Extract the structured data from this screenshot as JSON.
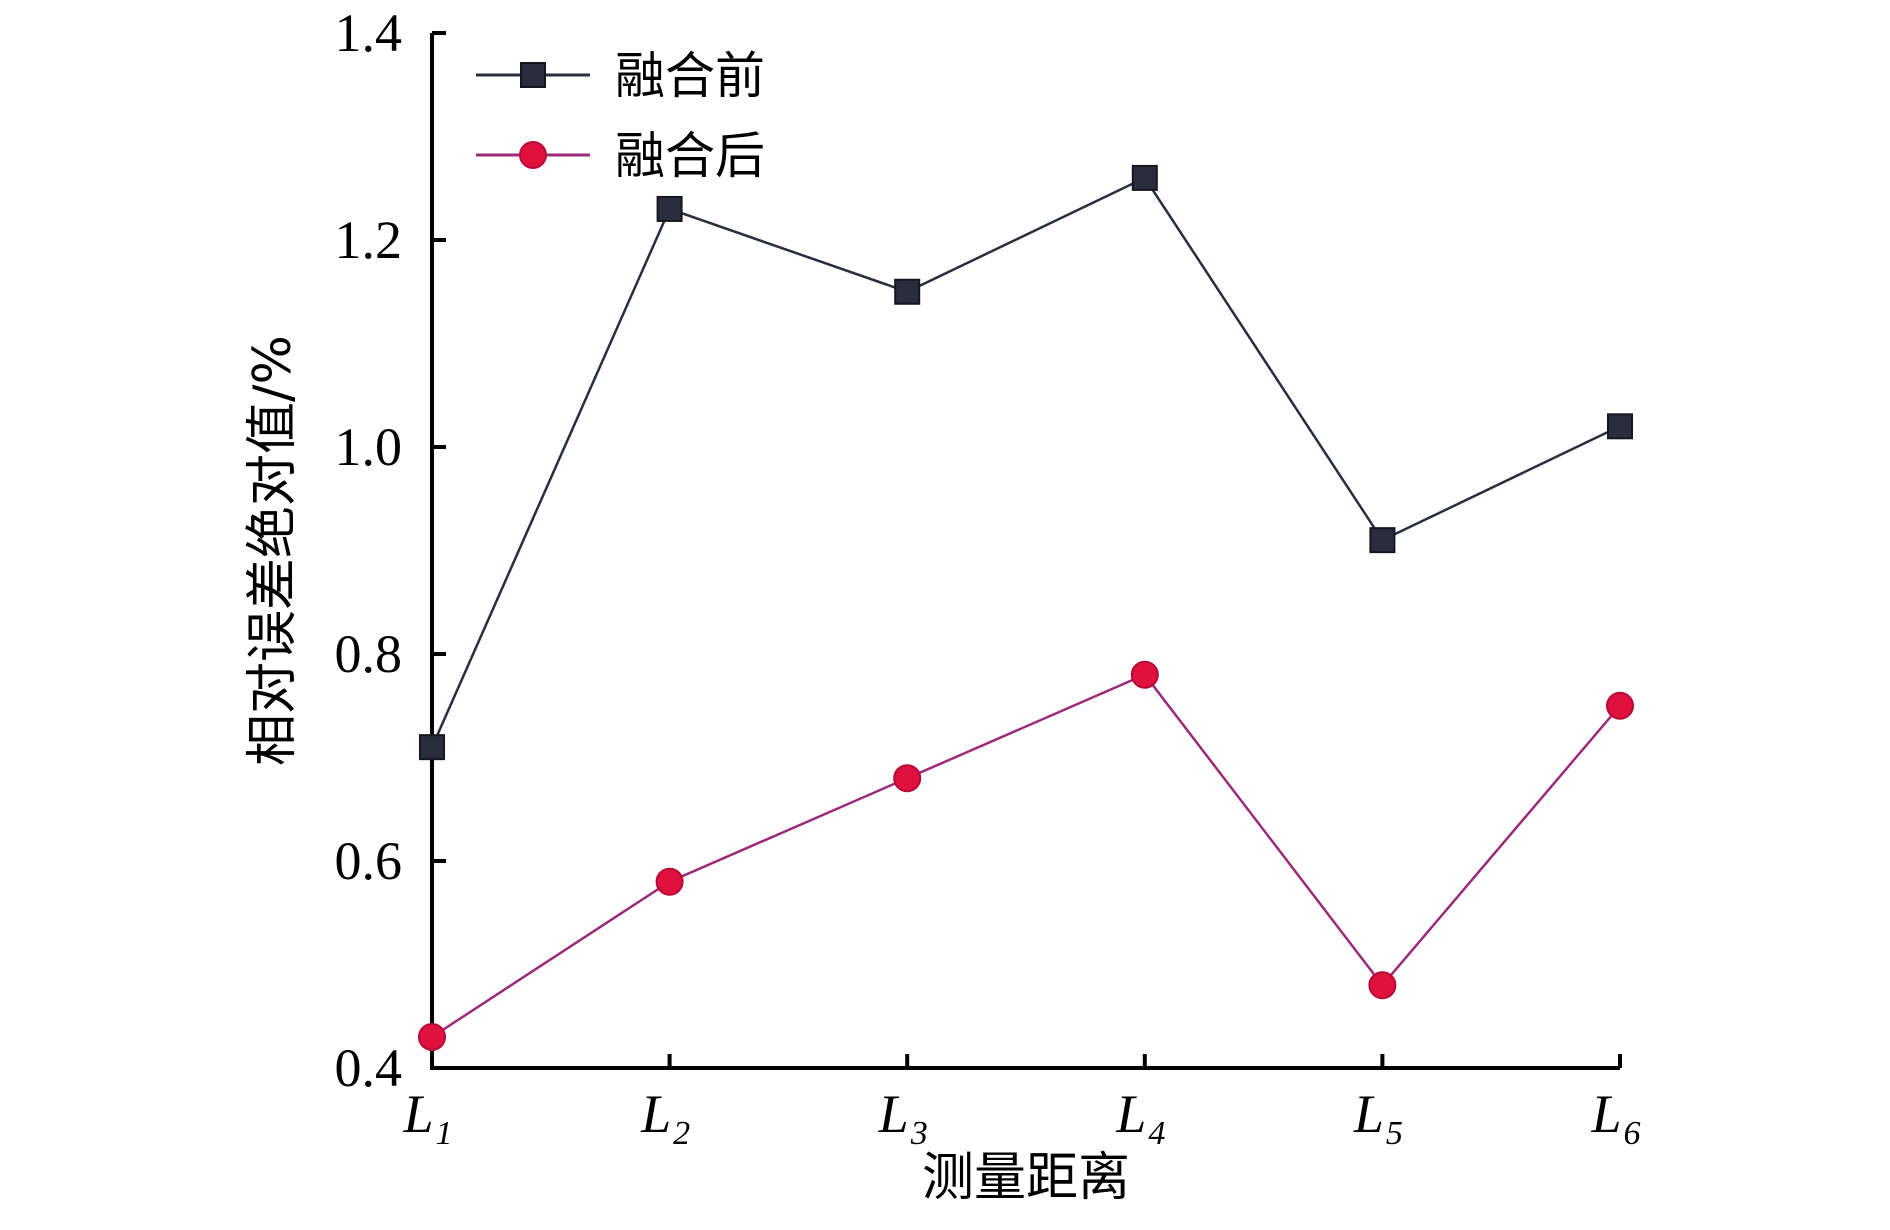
{
  "chart_data": {
    "type": "line",
    "categories": [
      "L1",
      "L2",
      "L3",
      "L4",
      "L5",
      "L6"
    ],
    "categories_display": [
      {
        "main": "L",
        "sub": "1"
      },
      {
        "main": "L",
        "sub": "2"
      },
      {
        "main": "L",
        "sub": "3"
      },
      {
        "main": "L",
        "sub": "4"
      },
      {
        "main": "L",
        "sub": "5"
      },
      {
        "main": "L",
        "sub": "6"
      }
    ],
    "series": [
      {
        "name": "融合前",
        "values": [
          0.71,
          1.23,
          1.15,
          1.26,
          0.91,
          1.02
        ],
        "color": "#2a2d3e",
        "marker": "square"
      },
      {
        "name": "融合后",
        "values": [
          0.43,
          0.58,
          0.68,
          0.78,
          0.48,
          0.75
        ],
        "color": "#e0103f",
        "line_color": "#9b2a7a",
        "marker": "circle"
      }
    ],
    "xlabel": "测量距离",
    "ylabel": "相对误差绝对值/%",
    "ylim": [
      0.4,
      1.4
    ],
    "yticks": [
      0.4,
      0.6,
      0.8,
      1.0,
      1.2,
      1.4
    ],
    "ytick_labels": [
      "0.4",
      "0.6",
      "0.8",
      "1.0",
      "1.2",
      "1.4"
    ],
    "grid": false,
    "legend_position": "top-left"
  }
}
